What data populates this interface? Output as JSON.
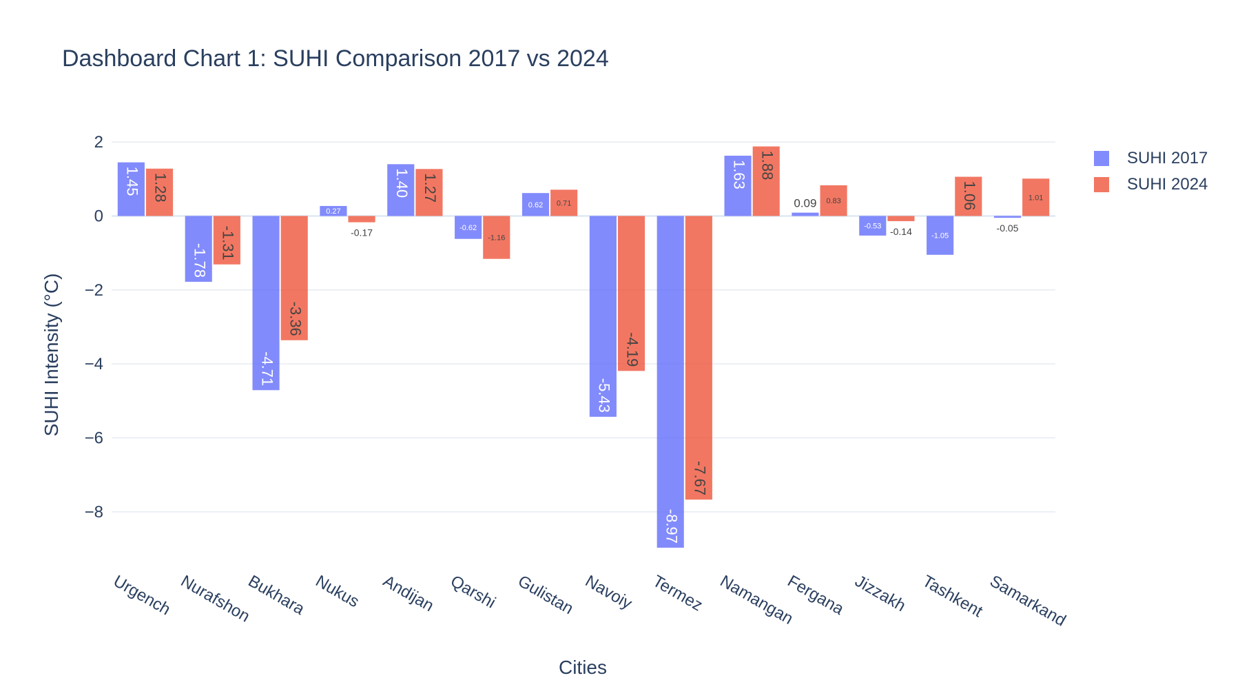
{
  "chart_data": {
    "type": "bar",
    "title": "Dashboard Chart 1: SUHI Comparison 2017 vs 2024",
    "xlabel": "Cities",
    "ylabel": "SUHI Intensity (°C)",
    "categories": [
      "Urgench",
      "Nurafshon",
      "Bukhara",
      "Nukus",
      "Andijan",
      "Qarshi",
      "Gulistan",
      "Navoiy",
      "Termez",
      "Namangan",
      "Fergana",
      "Jizzakh",
      "Tashkent",
      "Samarkand"
    ],
    "series": [
      {
        "name": "SUHI 2017",
        "color": "#636efa",
        "values": [
          1.45,
          -1.78,
          -4.71,
          0.27,
          1.4,
          -0.62,
          0.62,
          -5.43,
          -8.97,
          1.63,
          0.09,
          -0.53,
          -1.05,
          -0.05
        ],
        "labels": [
          "1.45",
          "-1.78",
          "-4.71",
          "0.27",
          "1.40",
          "-0.62",
          "0.62",
          "-5.43",
          "-8.97",
          "1.63",
          "0.09",
          "-0.53",
          "-1.05",
          "-0.05"
        ]
      },
      {
        "name": "SUHI 2024",
        "color": "#ef553b",
        "values": [
          1.28,
          -1.31,
          -3.36,
          -0.17,
          1.27,
          -1.16,
          0.71,
          -4.19,
          -7.67,
          1.88,
          0.83,
          -0.14,
          1.06,
          1.01
        ],
        "labels": [
          "1.28",
          "-1.31",
          "-3.36",
          "-0.17",
          "1.27",
          "-1.16",
          "0.71",
          "-4.19",
          "-7.67",
          "1.88",
          "0.83",
          "-0.14",
          "1.06",
          "1.01"
        ]
      }
    ],
    "ylim": [
      -9.4,
      2.3
    ],
    "yticks": [
      2,
      0,
      -2,
      -4,
      -6,
      -8
    ],
    "ytick_labels": [
      "2",
      "0",
      "−2",
      "−4",
      "−6",
      "−8"
    ],
    "grid": true,
    "legend_position": "top-right",
    "bar_opacity": 0.8
  }
}
